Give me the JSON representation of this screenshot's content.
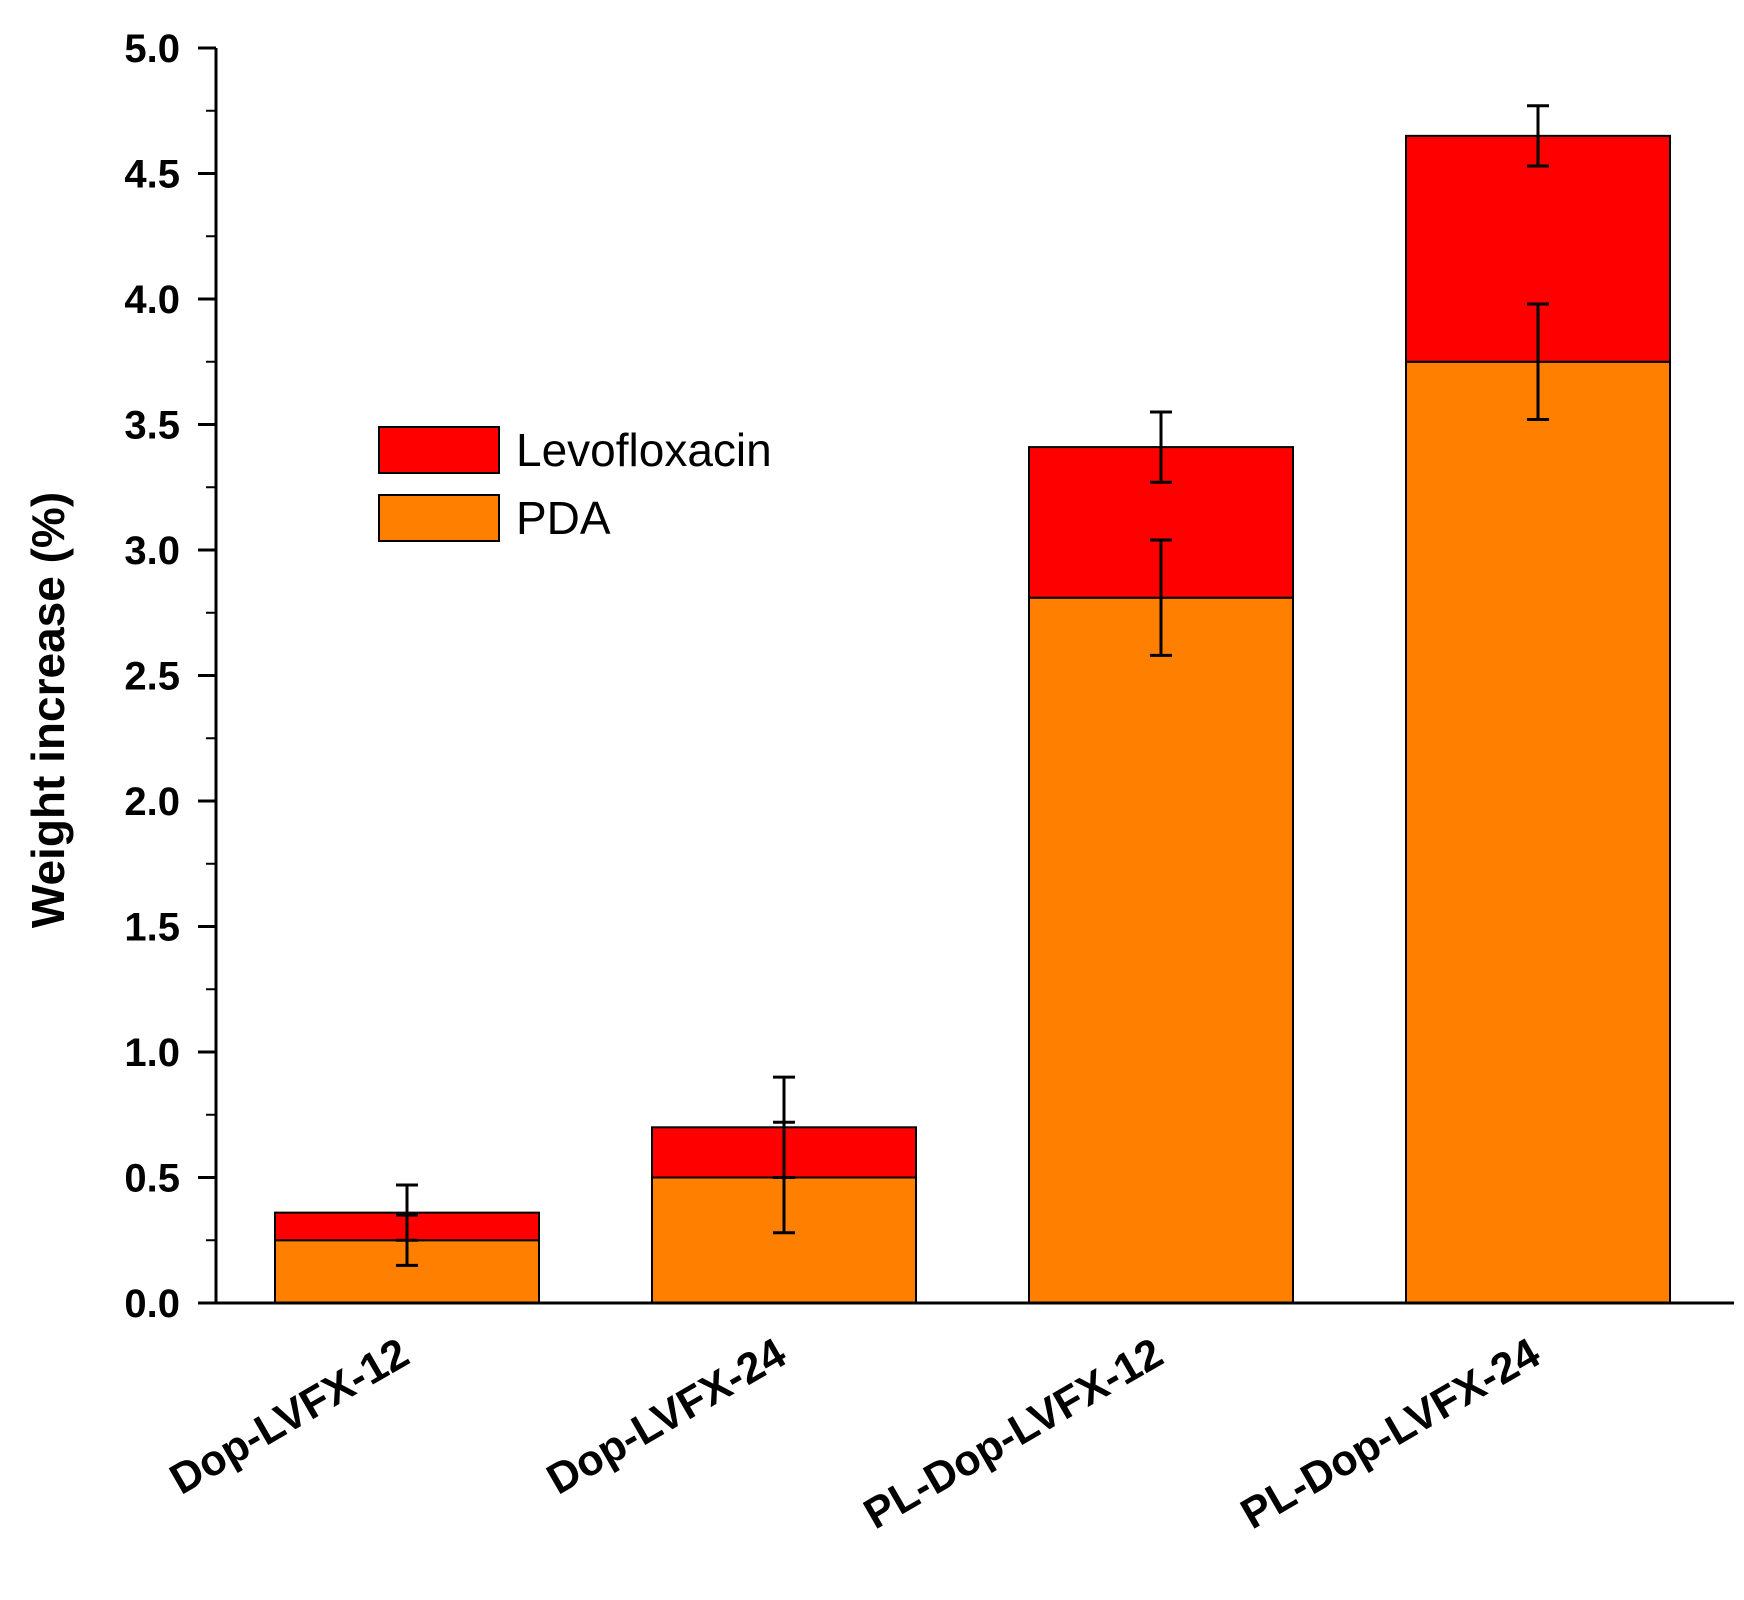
{
  "chart_data": {
    "type": "bar",
    "stacked": true,
    "categories": [
      "Dop-LVFX-12",
      "Dop-LVFX-24",
      "PL-Dop-LVFX-12",
      "PL-Dop-LVFX-24"
    ],
    "series": [
      {
        "name": "PDA",
        "color": "#FF8000",
        "values": [
          0.25,
          0.5,
          2.81,
          3.75
        ],
        "error": [
          0.1,
          0.22,
          0.23,
          0.23
        ]
      },
      {
        "name": "Levofloxacin",
        "color": "#FF0000",
        "values": [
          0.11,
          0.2,
          0.6,
          0.9
        ],
        "error": [
          0.11,
          0.2,
          0.14,
          0.12
        ]
      }
    ],
    "title": "",
    "xlabel": "",
    "ylabel": "Weight increase (%)",
    "ylim": [
      0,
      5.0
    ],
    "yticks": [
      "0.0",
      "0.5",
      "1.0",
      "1.5",
      "2.0",
      "2.5",
      "3.0",
      "3.5",
      "4.0",
      "4.5",
      "5.0"
    ],
    "ytick_values": [
      0,
      0.5,
      1.0,
      1.5,
      2.0,
      2.5,
      3.0,
      3.5,
      4.0,
      4.5,
      5.0
    ],
    "legend_position": "upper-left",
    "legend_order": [
      "Levofloxacin",
      "PDA"
    ],
    "grid": false
  }
}
